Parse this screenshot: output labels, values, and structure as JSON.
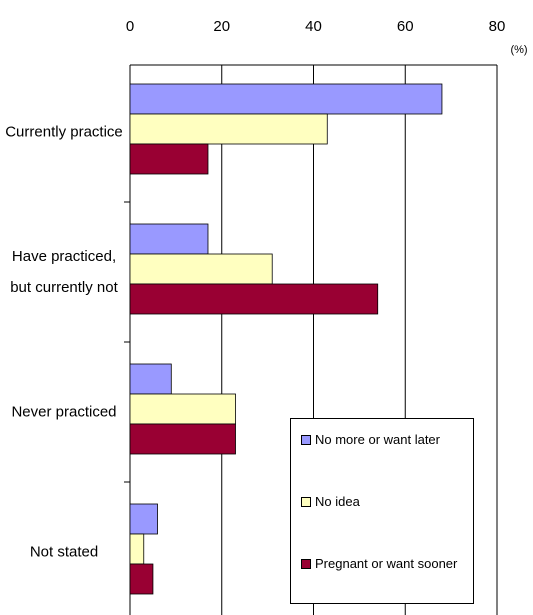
{
  "chart_data": {
    "type": "hbar",
    "unit": "(%)",
    "categories": [
      "Currently practice",
      "Have practiced, but currently not",
      "Never practiced",
      "Not stated"
    ],
    "series": [
      {
        "name": "No more or want later",
        "color": "#9999ff",
        "values": [
          68,
          17,
          9,
          6
        ]
      },
      {
        "name": "No idea",
        "color": "#ffffc0",
        "values": [
          43,
          31,
          23,
          3
        ]
      },
      {
        "name": "Pregnant or want sooner",
        "color": "#990033",
        "values": [
          17,
          54,
          23,
          5
        ]
      }
    ],
    "xlim": [
      0,
      80
    ],
    "xticks": [
      0,
      20,
      40,
      60,
      80
    ],
    "grid": true
  }
}
